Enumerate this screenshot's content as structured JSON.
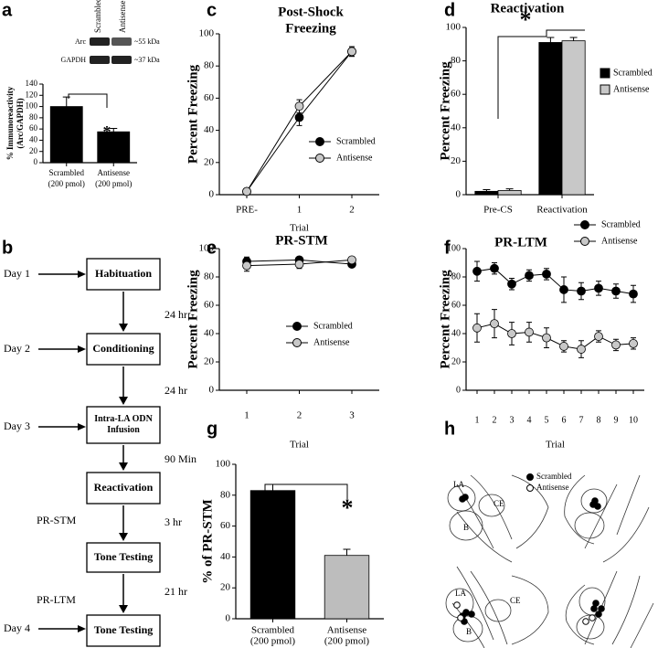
{
  "panel_labels": [
    "a",
    "b",
    "c",
    "d",
    "e",
    "f",
    "g",
    "h"
  ],
  "chart_data": [
    {
      "type": "bar",
      "ylabel": [
        "% Immunoreactivity",
        "(Arc/GAPDH)"
      ],
      "categories": [
        [
          "Scrambled",
          "(200 pmol)"
        ],
        [
          "Antisense",
          "(200 pmol)"
        ]
      ],
      "values": [
        100,
        55
      ],
      "errors": [
        17,
        6
      ],
      "color": "#000000",
      "ylim": [
        0,
        140
      ],
      "yticks": [
        0,
        20,
        40,
        60,
        80,
        100,
        120,
        140
      ],
      "annotations": [
        "*"
      ]
    },
    {
      "type": "line",
      "title": [
        "Post-Shock",
        "Freezing"
      ],
      "xlabel": "Trial",
      "ylabel": "Percent Freezing",
      "categories": [
        "PRE-",
        "1",
        "2"
      ],
      "series": [
        {
          "name": "Scrambled",
          "color": "#000000",
          "values": [
            2,
            48,
            89
          ],
          "errors": [
            1,
            5,
            3
          ]
        },
        {
          "name": "Antisense",
          "color": "#c8c8c8",
          "values": [
            2,
            55,
            89
          ],
          "errors": [
            1,
            4,
            3
          ]
        }
      ],
      "ylim": [
        0,
        100
      ],
      "yticks": [
        0,
        20,
        40,
        60,
        80,
        100
      ]
    },
    {
      "type": "bar",
      "title": "Reactivation",
      "ylabel": "Percent Freezing",
      "categories": [
        "Pre-CS",
        "Reactivation"
      ],
      "series": [
        {
          "name": "Scrambled",
          "color": "#000000",
          "values": [
            2,
            91
          ],
          "errors": [
            1,
            3
          ]
        },
        {
          "name": "Antisense",
          "color": "#c8c8c8",
          "values": [
            2.5,
            92
          ],
          "errors": [
            1,
            2
          ]
        }
      ],
      "ylim": [
        0,
        100
      ],
      "yticks": [
        0,
        20,
        40,
        60,
        80,
        100
      ],
      "annotations": [
        "*"
      ]
    },
    {
      "type": "line",
      "title": "PR-STM",
      "xlabel": "Trial",
      "ylabel": "Percent Freezing",
      "categories": [
        "1",
        "2",
        "3"
      ],
      "series": [
        {
          "name": "Scrambled",
          "color": "#000000",
          "values": [
            91,
            92,
            89
          ],
          "errors": [
            3,
            2,
            2
          ]
        },
        {
          "name": "Antisense",
          "color": "#c8c8c8",
          "values": [
            88,
            89,
            92
          ],
          "errors": [
            4,
            3,
            2
          ]
        }
      ],
      "ylim": [
        0,
        100
      ],
      "yticks": [
        0,
        20,
        40,
        60,
        80,
        100
      ]
    },
    {
      "type": "line",
      "title": "PR-LTM",
      "xlabel": "Trial",
      "ylabel": "Percent Freezing",
      "categories": [
        "1",
        "2",
        "3",
        "4",
        "5",
        "6",
        "7",
        "8",
        "9",
        "10"
      ],
      "series": [
        {
          "name": "Scrambled",
          "color": "#000000",
          "values": [
            84,
            86,
            75,
            81,
            82,
            71,
            70,
            72,
            70,
            68
          ],
          "errors": [
            7,
            4,
            4,
            4,
            4,
            9,
            6,
            5,
            5,
            6
          ]
        },
        {
          "name": "Antisense",
          "color": "#c8c8c8",
          "values": [
            44,
            47,
            40,
            41,
            37,
            31,
            29,
            38,
            32,
            33
          ],
          "errors": [
            10,
            10,
            8,
            7,
            7,
            4,
            6,
            4,
            4,
            4
          ]
        }
      ],
      "ylim": [
        0,
        100
      ],
      "yticks": [
        0,
        20,
        40,
        60,
        80,
        100
      ]
    },
    {
      "type": "bar",
      "ylabel": "% of PR-STM",
      "categories": [
        [
          "Scrambled",
          "(200 pmol)"
        ],
        [
          "Antisense",
          "(200 pmol)"
        ]
      ],
      "values": [
        83,
        41
      ],
      "errors": [
        4,
        4
      ],
      "colors": [
        "#000000",
        "#bdbdbd"
      ],
      "ylim": [
        0,
        100
      ],
      "yticks": [
        0,
        20,
        40,
        60,
        80,
        100
      ],
      "annotations": [
        "*"
      ]
    }
  ],
  "blot": {
    "columns": [
      "Scrambled",
      "Antisense"
    ],
    "rows": [
      "Arc",
      "GAPDH"
    ],
    "sizes": [
      "~55 kDa",
      "~37 kDa"
    ]
  },
  "flowchart": {
    "steps": [
      "Habituation",
      "Conditioning",
      "Intra-LA ODN Infusion",
      "Reactivation",
      "Tone Testing",
      "Tone Testing"
    ],
    "stages": [
      "Day 1",
      "Day 2",
      "Day 3",
      "PR-STM",
      "PR-LTM",
      "Day 4"
    ],
    "intervals": [
      "24 hr",
      "24 hr",
      "90 Min",
      "3 hr",
      "21 hr"
    ]
  },
  "anatomy": {
    "legend": [
      "Scrambled",
      "Antisense"
    ],
    "labels": [
      "LA",
      "CE",
      "B",
      "LA",
      "CE",
      "B"
    ]
  }
}
